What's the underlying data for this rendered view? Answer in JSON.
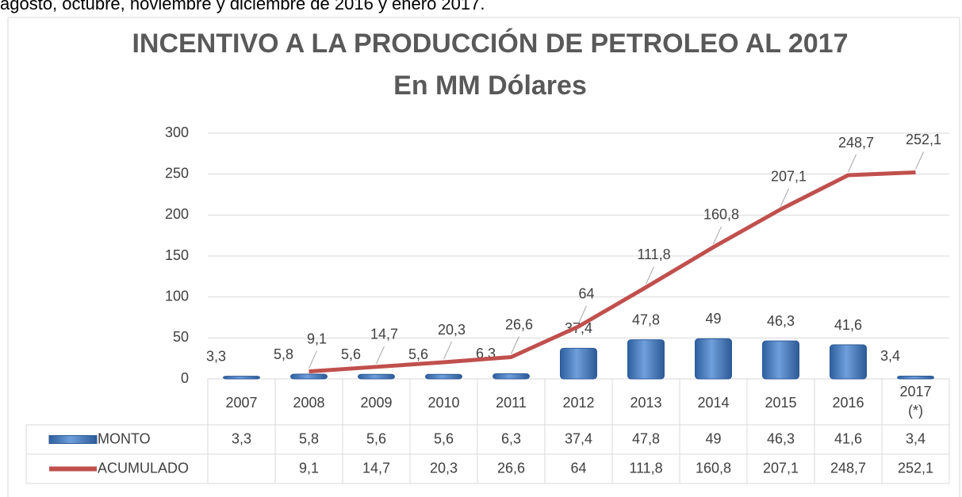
{
  "caption": "agosto, octubre, noviembre y diciembre de 2016 y enero 2017.",
  "chart_data": {
    "type": "bar-line",
    "title": "INCENTIVO A LA PRODUCCIÓN DE PETROLEO AL 2017",
    "subtitle": "En MM Dólares",
    "categories": [
      "2007",
      "2008",
      "2009",
      "2010",
      "2011",
      "2012",
      "2013",
      "2014",
      "2015",
      "2016",
      "2017 (*)"
    ],
    "series": [
      {
        "name": "MONTO",
        "type": "bar",
        "color": "#4f81bd",
        "values": [
          3.3,
          5.8,
          5.6,
          5.6,
          6.3,
          37.4,
          47.8,
          49,
          46.3,
          41.6,
          3.4
        ],
        "value_labels": [
          "3,3",
          "5,8",
          "5,6",
          "5,6",
          "6,3",
          "37,4",
          "47,8",
          "49",
          "46,3",
          "41,6",
          "3,4"
        ]
      },
      {
        "name": "ACUMULADO",
        "type": "line",
        "color": "#c0504d",
        "values": [
          null,
          9.1,
          14.7,
          20.3,
          26.6,
          64,
          111.8,
          160.8,
          207.1,
          248.7,
          252.1
        ],
        "value_labels": [
          null,
          "9,1",
          "14,7",
          "20,3",
          "26,6",
          "64",
          "111,8",
          "160,8",
          "207,1",
          "248,7",
          "252,1"
        ]
      }
    ],
    "ylim": [
      0,
      300
    ],
    "yticks": [
      0,
      50,
      100,
      150,
      200,
      250,
      300
    ],
    "grid": true,
    "legend": "table"
  }
}
